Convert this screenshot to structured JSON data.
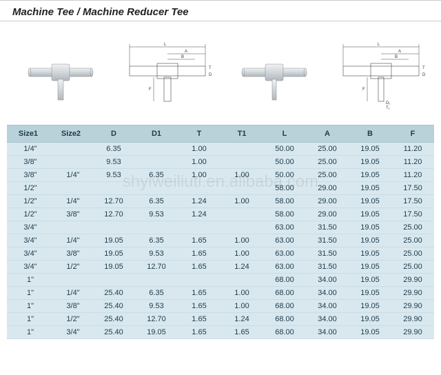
{
  "title": "Machine Tee / Machine Reducer Tee",
  "watermark": "shyiweiliuti.en.alibaba.com",
  "diagram_labels": {
    "L": "L",
    "A": "A",
    "B": "B",
    "F": "F",
    "D": "D",
    "T": "T",
    "D1": "D₁",
    "T1": "T₁"
  },
  "table": {
    "columns": [
      "Size1",
      "Size2",
      "D",
      "D1",
      "T",
      "T1",
      "L",
      "A",
      "B",
      "F"
    ],
    "column_widths": [
      "10%",
      "10%",
      "10%",
      "10%",
      "10%",
      "10%",
      "10%",
      "10%",
      "10%",
      "10%"
    ],
    "header_bg": "#b9d2da",
    "row_bg": "#d9e8ef",
    "text_color": "#1a3a4a",
    "rows": [
      [
        "1/4\"",
        "",
        "6.35",
        "",
        "1.00",
        "",
        "50.00",
        "25.00",
        "19.05",
        "11.20"
      ],
      [
        "3/8\"",
        "",
        "9.53",
        "",
        "1.00",
        "",
        "50.00",
        "25.00",
        "19.05",
        "11.20"
      ],
      [
        "3/8\"",
        "1/4\"",
        "9.53",
        "6.35",
        "1.00",
        "1.00",
        "50.00",
        "25.00",
        "19.05",
        "11.20"
      ],
      [
        "1/2\"",
        "",
        "",
        "",
        "",
        "",
        "58.00",
        "29.00",
        "19.05",
        "17.50"
      ],
      [
        "1/2\"",
        "1/4\"",
        "12.70",
        "6.35",
        "1.24",
        "1.00",
        "58.00",
        "29.00",
        "19.05",
        "17.50"
      ],
      [
        "1/2\"",
        "3/8\"",
        "12.70",
        "9.53",
        "1.24",
        "",
        "58.00",
        "29.00",
        "19.05",
        "17.50"
      ],
      [
        "3/4\"",
        "",
        "",
        "",
        "",
        "",
        "63.00",
        "31.50",
        "19.05",
        "25.00"
      ],
      [
        "3/4\"",
        "1/4\"",
        "19.05",
        "6.35",
        "1.65",
        "1.00",
        "63.00",
        "31.50",
        "19.05",
        "25.00"
      ],
      [
        "3/4\"",
        "3/8\"",
        "19.05",
        "9.53",
        "1.65",
        "1.00",
        "63.00",
        "31.50",
        "19.05",
        "25.00"
      ],
      [
        "3/4\"",
        "1/2\"",
        "19.05",
        "12.70",
        "1.65",
        "1.24",
        "63.00",
        "31.50",
        "19.05",
        "25.00"
      ],
      [
        "1\"",
        "",
        "",
        "",
        "",
        "",
        "68.00",
        "34.00",
        "19.05",
        "29.90"
      ],
      [
        "1\"",
        "1/4\"",
        "25.40",
        "6.35",
        "1.65",
        "1.00",
        "68.00",
        "34.00",
        "19.05",
        "29.90"
      ],
      [
        "1\"",
        "3/8\"",
        "25.40",
        "9.53",
        "1.65",
        "1.00",
        "68.00",
        "34.00",
        "19.05",
        "29.90"
      ],
      [
        "1\"",
        "1/2\"",
        "25.40",
        "12.70",
        "1.65",
        "1.24",
        "68.00",
        "34.00",
        "19.05",
        "29.90"
      ],
      [
        "1\"",
        "3/4\"",
        "25.40",
        "19.05",
        "1.65",
        "1.65",
        "68.00",
        "34.00",
        "19.05",
        "29.90"
      ]
    ]
  },
  "colors": {
    "title_color": "#222222",
    "border_color": "#cccccc",
    "fitting_light": "#e8ecef",
    "fitting_dark": "#b8c0c5",
    "dim_line": "#444444"
  }
}
